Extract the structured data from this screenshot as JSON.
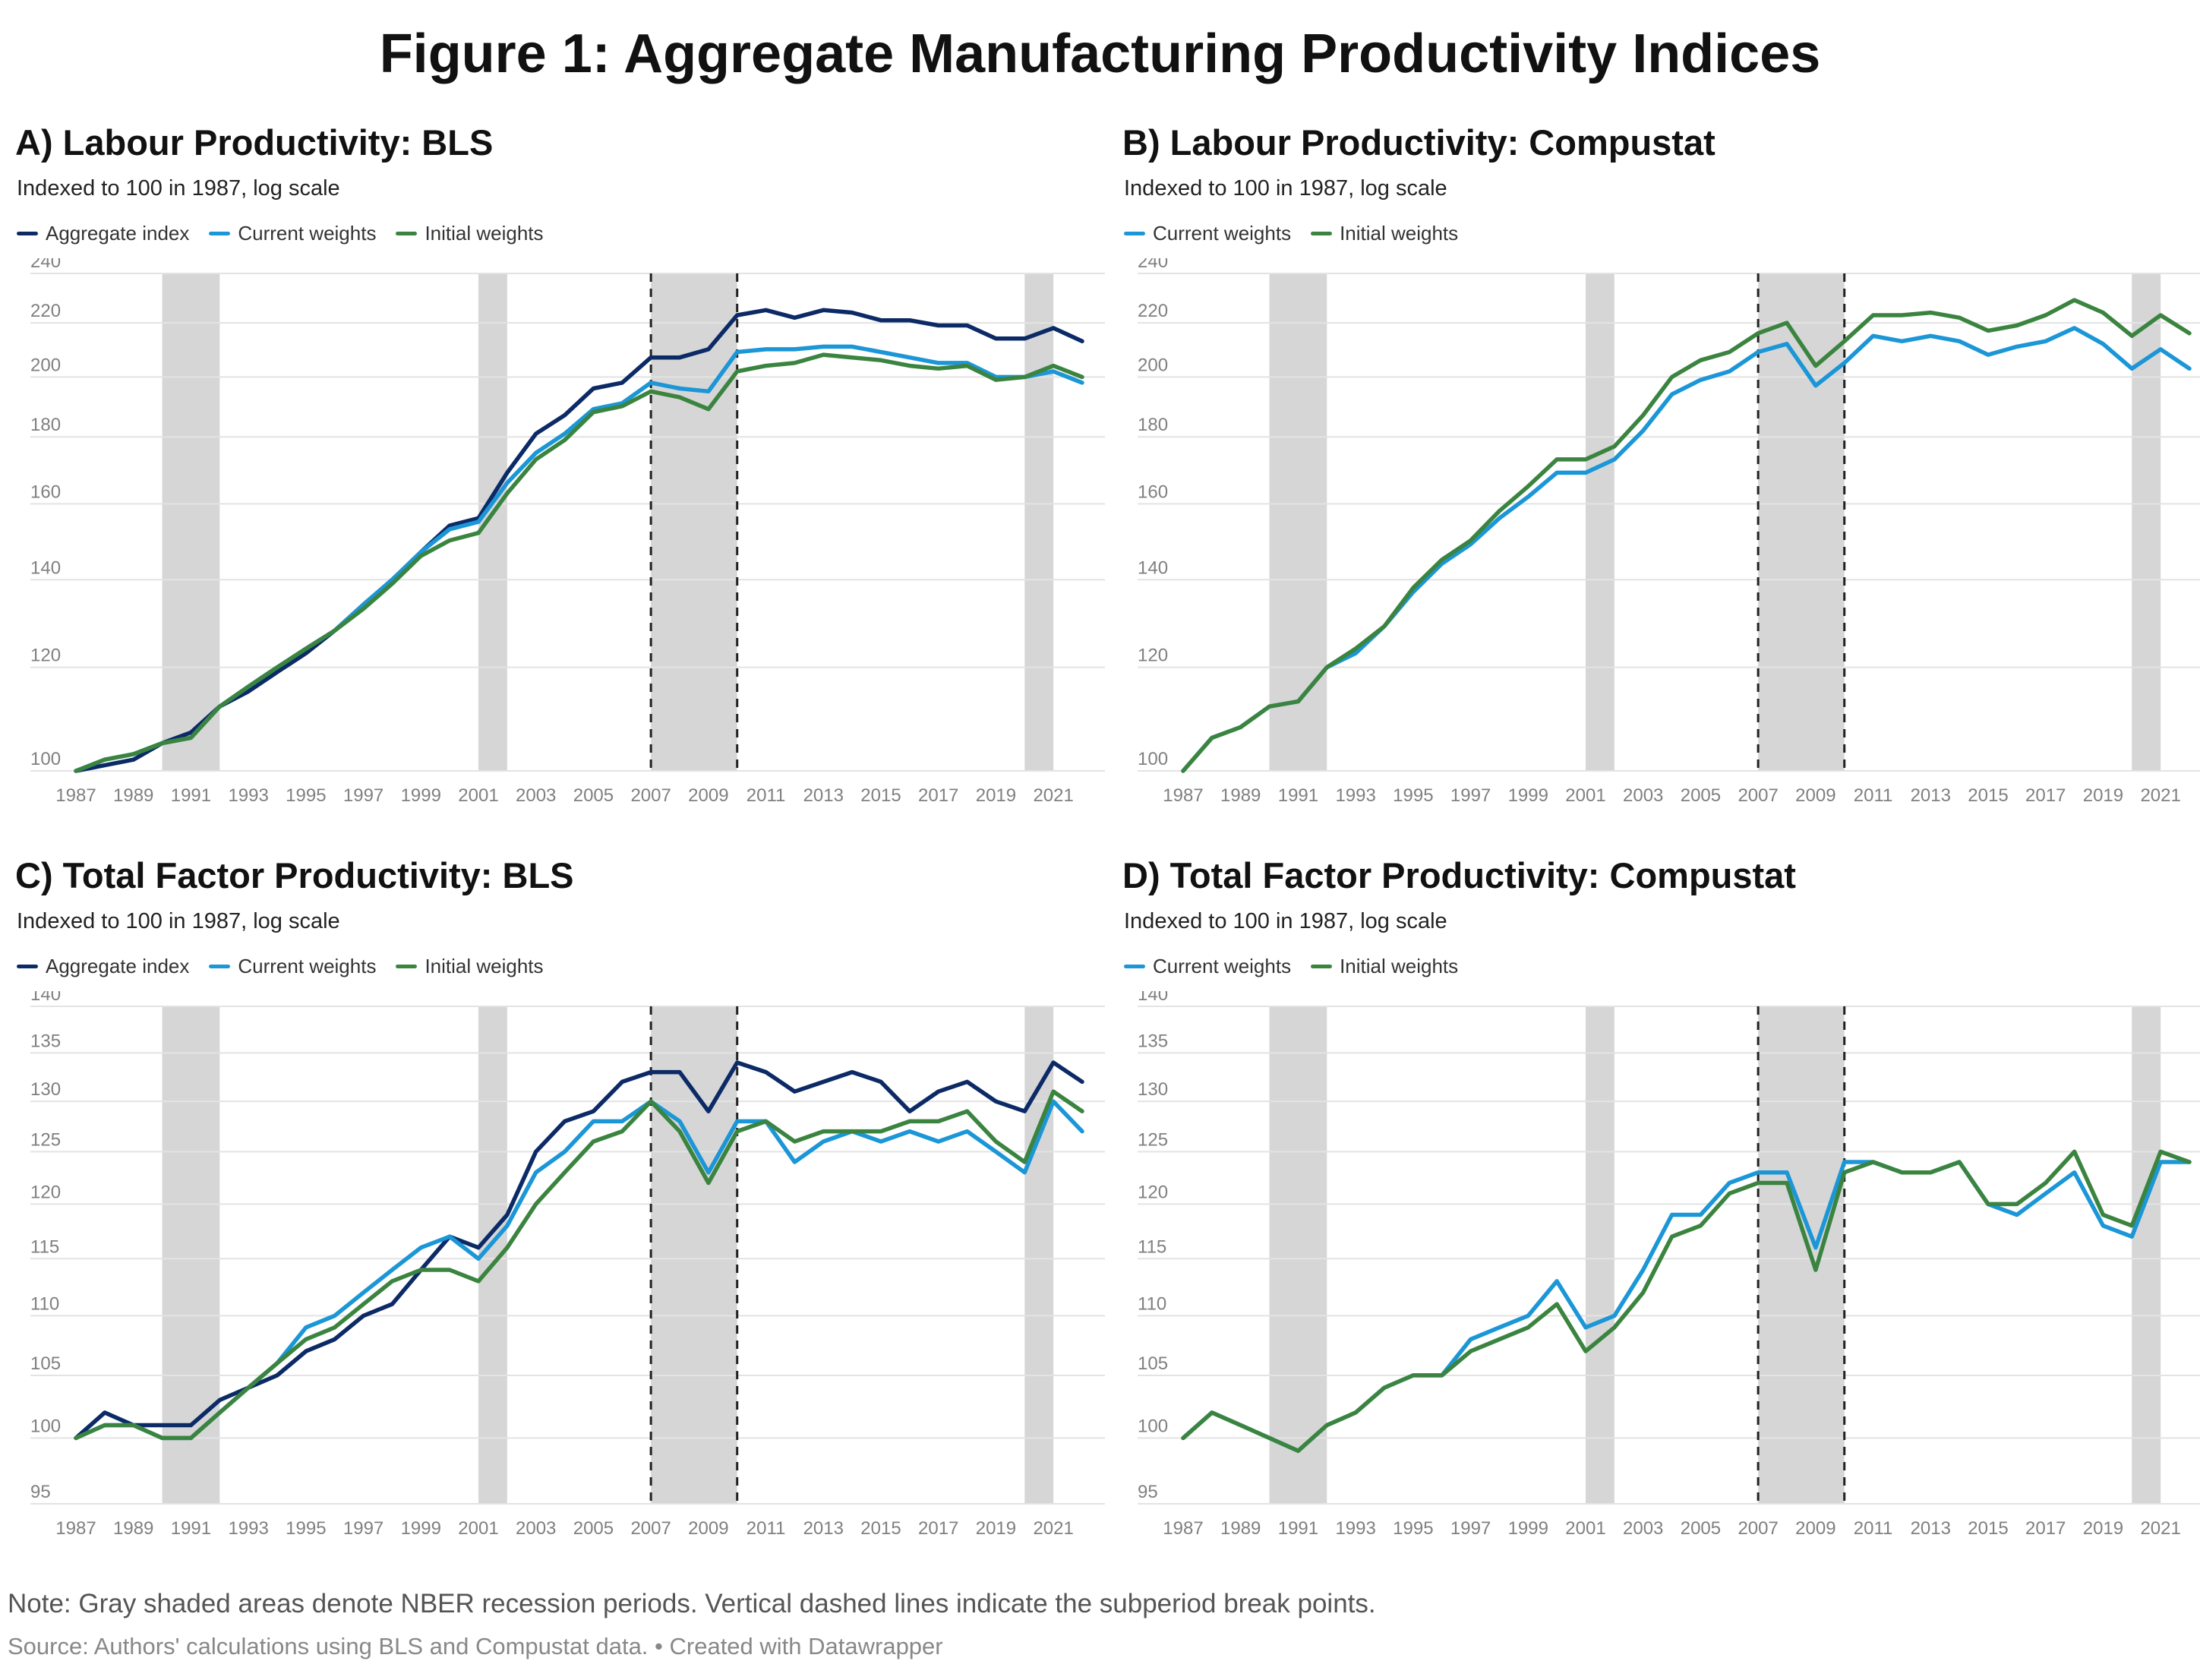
{
  "figure_title": "Figure 1: Aggregate Manufacturing Productivity Indices",
  "note": "Note: Gray shaded areas denote NBER recession periods. Vertical dashed lines indicate the subperiod break points.",
  "source": "Source: Authors' calculations using BLS and Compustat data. • Created with Datawrapper",
  "colors": {
    "Aggregate index": "#0b2a66",
    "Current weights": "#1b96d6",
    "Initial weights": "#3b8440",
    "recession": "#d6d6d6",
    "grid": "#e3e3e3",
    "tick": "#808080"
  },
  "chart_data": [
    {
      "id": "A",
      "type": "line",
      "title": "A) Labour Productivity: BLS",
      "subtitle": "Indexed to 100 in 1987, log scale",
      "legend": [
        "Aggregate index",
        "Current weights",
        "Initial weights"
      ],
      "yticks": [
        100,
        120,
        140,
        160,
        180,
        200,
        220,
        240
      ],
      "ylim": [
        100,
        240
      ],
      "xlim": [
        1987,
        2022
      ],
      "xticks": [
        1987,
        1989,
        1991,
        1993,
        1995,
        1997,
        1999,
        2001,
        2003,
        2005,
        2007,
        2009,
        2011,
        2013,
        2015,
        2017,
        2019,
        2021
      ],
      "recessions": [
        [
          1990,
          1992
        ],
        [
          2001,
          2002
        ],
        [
          2007,
          2010
        ],
        [
          2020,
          2021
        ]
      ],
      "breaks": [
        2007,
        2010
      ],
      "x": [
        1987,
        1988,
        1989,
        1990,
        1991,
        1992,
        1993,
        1994,
        1995,
        1996,
        1997,
        1998,
        1999,
        2000,
        2001,
        2002,
        2003,
        2004,
        2005,
        2006,
        2007,
        2008,
        2009,
        2010,
        2011,
        2012,
        2013,
        2014,
        2015,
        2016,
        2017,
        2018,
        2019,
        2020,
        2021,
        2022
      ],
      "series": [
        {
          "name": "Aggregate index",
          "values": [
            100,
            101,
            102,
            105,
            107,
            112,
            115,
            119,
            123,
            128,
            134,
            140,
            147,
            154,
            156,
            169,
            181,
            187,
            196,
            198,
            207,
            207,
            210,
            223,
            225,
            222,
            225,
            224,
            221,
            221,
            219,
            219,
            214,
            214,
            218,
            213
          ]
        },
        {
          "name": "Current weights",
          "values": [
            100,
            102,
            103,
            105,
            106,
            112,
            116,
            120,
            124,
            128,
            134,
            140,
            147,
            153,
            155,
            166,
            175,
            181,
            189,
            191,
            198,
            196,
            195,
            209,
            210,
            210,
            211,
            211,
            209,
            207,
            205,
            205,
            200,
            200,
            202,
            198
          ]
        },
        {
          "name": "Initial weights",
          "values": [
            100,
            102,
            103,
            105,
            106,
            112,
            116,
            120,
            124,
            128,
            133,
            139,
            146,
            150,
            152,
            163,
            173,
            179,
            188,
            190,
            195,
            193,
            189,
            202,
            204,
            205,
            208,
            207,
            206,
            204,
            203,
            204,
            199,
            200,
            204,
            200
          ]
        }
      ]
    },
    {
      "id": "B",
      "type": "line",
      "title": "B) Labour Productivity: Compustat",
      "subtitle": "Indexed to 100 in 1987, log scale",
      "legend": [
        "Current weights",
        "Initial weights"
      ],
      "yticks": [
        100,
        120,
        140,
        160,
        180,
        200,
        220,
        240
      ],
      "ylim": [
        100,
        240
      ],
      "xlim": [
        1987,
        2022
      ],
      "xticks": [
        1987,
        1989,
        1991,
        1993,
        1995,
        1997,
        1999,
        2001,
        2003,
        2005,
        2007,
        2009,
        2011,
        2013,
        2015,
        2017,
        2019,
        2021
      ],
      "recessions": [
        [
          1990,
          1992
        ],
        [
          2001,
          2002
        ],
        [
          2007,
          2010
        ],
        [
          2020,
          2021
        ]
      ],
      "breaks": [
        2007,
        2010
      ],
      "x": [
        1987,
        1988,
        1989,
        1990,
        1991,
        1992,
        1993,
        1994,
        1995,
        1996,
        1997,
        1998,
        1999,
        2000,
        2001,
        2002,
        2003,
        2004,
        2005,
        2006,
        2007,
        2008,
        2009,
        2010,
        2011,
        2012,
        2013,
        2014,
        2015,
        2016,
        2017,
        2018,
        2019,
        2020,
        2021,
        2022
      ],
      "series": [
        {
          "name": "Current weights",
          "values": [
            100,
            106,
            108,
            112,
            113,
            120,
            123,
            129,
            137,
            144,
            149,
            156,
            162,
            169,
            169,
            173,
            182,
            194,
            199,
            202,
            209,
            212,
            197,
            205,
            215,
            213,
            215,
            213,
            208,
            211,
            213,
            218,
            212,
            203,
            210,
            203
          ]
        },
        {
          "name": "Initial weights",
          "values": [
            100,
            106,
            108,
            112,
            113,
            120,
            124,
            129,
            138,
            145,
            150,
            158,
            165,
            173,
            173,
            177,
            187,
            200,
            206,
            209,
            216,
            220,
            204,
            213,
            223,
            223,
            224,
            222,
            217,
            219,
            223,
            229,
            224,
            215,
            223,
            216
          ]
        }
      ]
    },
    {
      "id": "C",
      "type": "line",
      "title": "C) Total Factor Productivity: BLS",
      "subtitle": "Indexed to 100 in 1987, log scale",
      "legend": [
        "Aggregate index",
        "Current weights",
        "Initial weights"
      ],
      "yticks": [
        95,
        100,
        105,
        110,
        115,
        120,
        125,
        130,
        135,
        140
      ],
      "ylim": [
        95,
        140
      ],
      "xlim": [
        1987,
        2022
      ],
      "xticks": [
        1987,
        1989,
        1991,
        1993,
        1995,
        1997,
        1999,
        2001,
        2003,
        2005,
        2007,
        2009,
        2011,
        2013,
        2015,
        2017,
        2019,
        2021
      ],
      "recessions": [
        [
          1990,
          1992
        ],
        [
          2001,
          2002
        ],
        [
          2007,
          2010
        ],
        [
          2020,
          2021
        ]
      ],
      "breaks": [
        2007,
        2010
      ],
      "x": [
        1987,
        1988,
        1989,
        1990,
        1991,
        1992,
        1993,
        1994,
        1995,
        1996,
        1997,
        1998,
        1999,
        2000,
        2001,
        2002,
        2003,
        2004,
        2005,
        2006,
        2007,
        2008,
        2009,
        2010,
        2011,
        2012,
        2013,
        2014,
        2015,
        2016,
        2017,
        2018,
        2019,
        2020,
        2021,
        2022
      ],
      "series": [
        {
          "name": "Aggregate index",
          "values": [
            100,
            102,
            101,
            101,
            101,
            103,
            104,
            105,
            107,
            108,
            110,
            111,
            114,
            117,
            116,
            119,
            125,
            128,
            129,
            132,
            133,
            133,
            129,
            134,
            133,
            131,
            132,
            133,
            132,
            129,
            131,
            132,
            130,
            129,
            134,
            132
          ]
        },
        {
          "name": "Current weights",
          "values": [
            100,
            101,
            101,
            100,
            100,
            102,
            104,
            106,
            109,
            110,
            112,
            114,
            116,
            117,
            115,
            118,
            123,
            125,
            128,
            128,
            130,
            128,
            123,
            128,
            128,
            124,
            126,
            127,
            126,
            127,
            126,
            127,
            125,
            123,
            130,
            127
          ]
        },
        {
          "name": "Initial weights",
          "values": [
            100,
            101,
            101,
            100,
            100,
            102,
            104,
            106,
            108,
            109,
            111,
            113,
            114,
            114,
            113,
            116,
            120,
            123,
            126,
            127,
            130,
            127,
            122,
            127,
            128,
            126,
            127,
            127,
            127,
            128,
            128,
            129,
            126,
            124,
            131,
            129
          ]
        }
      ]
    },
    {
      "id": "D",
      "type": "line",
      "title": "D) Total Factor Productivity: Compustat",
      "subtitle": "Indexed to 100 in 1987, log scale",
      "legend": [
        "Current weights",
        "Initial weights"
      ],
      "yticks": [
        95,
        100,
        105,
        110,
        115,
        120,
        125,
        130,
        135,
        140
      ],
      "ylim": [
        95,
        140
      ],
      "xlim": [
        1987,
        2022
      ],
      "xticks": [
        1987,
        1989,
        1991,
        1993,
        1995,
        1997,
        1999,
        2001,
        2003,
        2005,
        2007,
        2009,
        2011,
        2013,
        2015,
        2017,
        2019,
        2021
      ],
      "recessions": [
        [
          1990,
          1992
        ],
        [
          2001,
          2002
        ],
        [
          2007,
          2010
        ],
        [
          2020,
          2021
        ]
      ],
      "breaks": [
        2007,
        2010
      ],
      "x": [
        1987,
        1988,
        1989,
        1990,
        1991,
        1992,
        1993,
        1994,
        1995,
        1996,
        1997,
        1998,
        1999,
        2000,
        2001,
        2002,
        2003,
        2004,
        2005,
        2006,
        2007,
        2008,
        2009,
        2010,
        2011,
        2012,
        2013,
        2014,
        2015,
        2016,
        2017,
        2018,
        2019,
        2020,
        2021,
        2022
      ],
      "series": [
        {
          "name": "Current weights",
          "values": [
            100,
            102,
            101,
            100,
            99,
            101,
            102,
            104,
            105,
            105,
            108,
            109,
            110,
            113,
            109,
            110,
            114,
            119,
            119,
            122,
            123,
            123,
            116,
            124,
            124,
            123,
            123,
            124,
            120,
            119,
            121,
            123,
            118,
            117,
            124,
            124
          ]
        },
        {
          "name": "Initial weights",
          "values": [
            100,
            102,
            101,
            100,
            99,
            101,
            102,
            104,
            105,
            105,
            107,
            108,
            109,
            111,
            107,
            109,
            112,
            117,
            118,
            121,
            122,
            122,
            114,
            123,
            124,
            123,
            123,
            124,
            120,
            120,
            122,
            125,
            119,
            118,
            125,
            124
          ]
        }
      ]
    }
  ]
}
